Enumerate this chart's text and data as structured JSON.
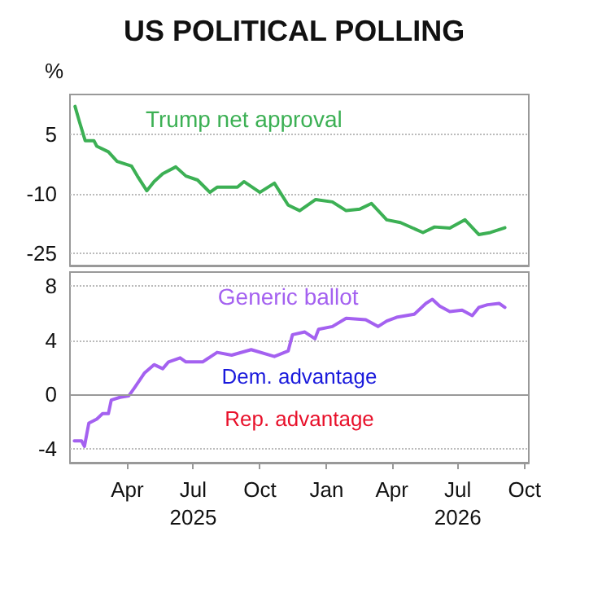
{
  "chart_data": [
    {
      "type": "line",
      "title": "US POLITICAL POLLING",
      "ylabel": "%",
      "xlim": [
        "2025-01-12",
        "2026-10-07"
      ],
      "ylim": [
        -28,
        15
      ],
      "yticks": [
        5,
        -10,
        -25
      ],
      "grid": "y",
      "tick_labels": "y",
      "line_style": "solid",
      "marker": "none",
      "x": [
        "2025-01-19",
        "2025-01-25",
        "2025-02-02",
        "2025-02-14",
        "2025-02-18",
        "2025-03-06",
        "2025-03-18",
        "2025-04-07",
        "2025-04-15",
        "2025-04-28",
        "2025-05-08",
        "2025-05-20",
        "2025-06-07",
        "2025-06-21",
        "2025-07-07",
        "2025-07-24",
        "2025-08-03",
        "2025-08-31",
        "2025-09-09",
        "2025-10-01",
        "2025-10-21",
        "2025-11-09",
        "2025-11-25",
        "2025-12-17",
        "2026-01-09",
        "2026-01-28",
        "2026-02-16",
        "2026-03-04",
        "2026-03-25",
        "2026-04-13",
        "2026-05-14",
        "2026-05-30",
        "2026-06-20",
        "2026-07-11",
        "2026-07-30",
        "2026-08-15",
        "2026-09-04"
      ],
      "series": [
        {
          "name": "Trump net approval",
          "color": "#3cb054",
          "values": [
            12,
            8.2,
            3.4,
            3.4,
            2,
            0.6,
            -1.8,
            -3,
            -5.5,
            -9.2,
            -6.9,
            -4.9,
            -3.2,
            -5.5,
            -6.5,
            -9.6,
            -8.3,
            -8.3,
            -6.9,
            -9.6,
            -7.3,
            -12.8,
            -14.2,
            -11.4,
            -12,
            -14.2,
            -13.8,
            -12.4,
            -16.5,
            -17.2,
            -19.7,
            -18.3,
            -18.6,
            -16.5,
            -20.2,
            -19.7,
            -18.5
          ]
        }
      ]
    },
    {
      "type": "line",
      "xlim": [
        "2025-01-12",
        "2026-10-07"
      ],
      "ylim": [
        -5,
        9
      ],
      "yticks": [
        -4,
        0,
        4,
        8
      ],
      "grid": "y",
      "line_style": "solid",
      "marker": "none",
      "xticks": [
        {
          "value": "2025-04-01",
          "label": "Apr"
        },
        {
          "value": "2025-07-01",
          "label": "Jul\n2025"
        },
        {
          "value": "2025-10-01",
          "label": "Oct"
        },
        {
          "value": "2026-01-01",
          "label": "Jan"
        },
        {
          "value": "2026-04-01",
          "label": "Apr"
        },
        {
          "value": "2026-07-01",
          "label": "Jul\n2026"
        },
        {
          "value": "2026-10-01",
          "label": "Oct"
        }
      ],
      "x": [
        "2025-01-18",
        "2025-01-28",
        "2025-02-01",
        "2025-02-07",
        "2025-02-18",
        "2025-02-26",
        "2025-03-06",
        "2025-03-10",
        "2025-03-22",
        "2025-04-03",
        "2025-04-11",
        "2025-04-25",
        "2025-05-08",
        "2025-05-20",
        "2025-05-28",
        "2025-06-13",
        "2025-06-21",
        "2025-07-14",
        "2025-08-03",
        "2025-08-23",
        "2025-09-19",
        "2025-10-21",
        "2025-11-09",
        "2025-11-15",
        "2025-12-02",
        "2025-12-16",
        "2025-12-21",
        "2026-01-09",
        "2026-01-28",
        "2026-02-24",
        "2026-03-13",
        "2026-03-25",
        "2026-04-09",
        "2026-05-02",
        "2026-05-18",
        "2026-05-27",
        "2026-06-06",
        "2026-06-20",
        "2026-07-07",
        "2026-07-21",
        "2026-07-30",
        "2026-08-11",
        "2026-08-27",
        "2026-09-04"
      ],
      "series": [
        {
          "name": "Generic ballot",
          "color": "#a461f0",
          "values": [
            -3.4,
            -3.4,
            -3.8,
            -2.1,
            -1.8,
            -1.4,
            -1.4,
            -0.4,
            -0.2,
            -0.1,
            0.5,
            1.6,
            2.2,
            1.9,
            2.4,
            2.7,
            2.4,
            2.4,
            3.1,
            2.9,
            3.3,
            2.8,
            3.2,
            4.4,
            4.6,
            4.1,
            4.8,
            5,
            5.6,
            5.5,
            5,
            5.4,
            5.7,
            5.9,
            6.7,
            7,
            6.5,
            6.1,
            6.2,
            5.8,
            6.4,
            6.6,
            6.7,
            6.4
          ]
        }
      ],
      "ref_lines": [
        {
          "axis": "y",
          "value": 0,
          "color": "#999999",
          "line_style": "solid"
        }
      ],
      "annotations": [
        "Dem. advantage",
        "Rep. advantage"
      ]
    }
  ]
}
